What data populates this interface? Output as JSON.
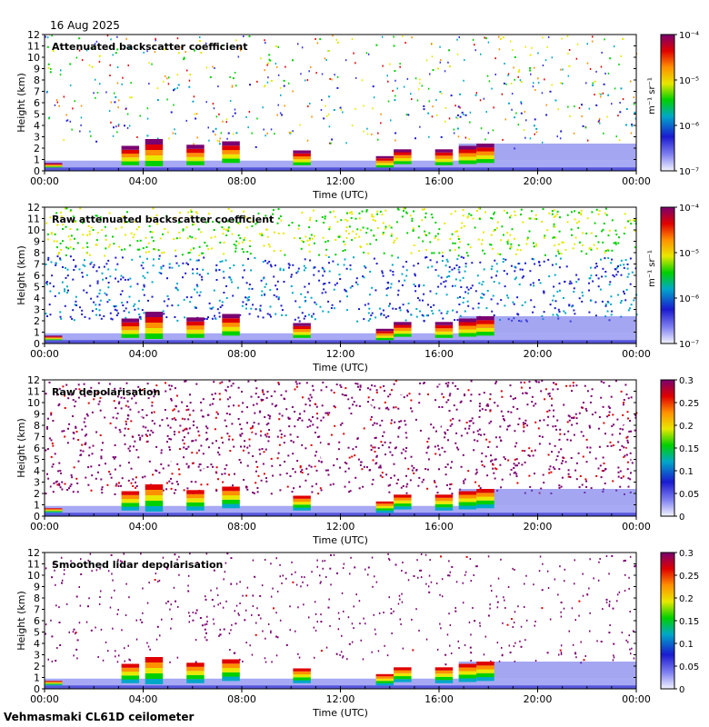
{
  "header": {
    "date": "16 Aug 2025"
  },
  "footer": {
    "site": "Vehmasmaki CL61D ceilometer"
  },
  "chart_data": [
    {
      "type": "heatmap",
      "title": "Attenuated backscatter coefficient",
      "xlabel": "Time (UTC)",
      "ylabel": "Height (km)",
      "x_ticks": [
        "00:00",
        "04:00",
        "08:00",
        "12:00",
        "16:00",
        "20:00",
        "00:00"
      ],
      "y_ticks": [
        "0",
        "1",
        "2",
        "3",
        "4",
        "5",
        "6",
        "7",
        "8",
        "9",
        "10",
        "11",
        "12"
      ],
      "ylim": [
        0,
        12
      ],
      "colorbar": {
        "scale": "log",
        "range": [
          1e-07,
          0.0001
        ],
        "unit": "m⁻¹ sr⁻¹",
        "ticks": [
          "10⁻⁷",
          "10⁻⁶",
          "10⁻⁵",
          "10⁻⁴"
        ]
      },
      "noise": 0.05
    },
    {
      "type": "heatmap",
      "title": "Raw attenuated backscatter coefficient",
      "xlabel": "Time (UTC)",
      "ylabel": "Height (km)",
      "x_ticks": [
        "00:00",
        "04:00",
        "08:00",
        "12:00",
        "16:00",
        "20:00",
        "00:00"
      ],
      "y_ticks": [
        "0",
        "1",
        "2",
        "3",
        "4",
        "5",
        "6",
        "7",
        "8",
        "9",
        "10",
        "11",
        "12"
      ],
      "ylim": [
        0,
        12
      ],
      "colorbar": {
        "scale": "log",
        "range": [
          1e-07,
          0.0001
        ],
        "unit": "m⁻¹ sr⁻¹",
        "ticks": [
          "10⁻⁷",
          "10⁻⁶",
          "10⁻⁵",
          "10⁻⁴"
        ]
      },
      "noise": 0.55
    },
    {
      "type": "heatmap",
      "title": "Raw depolarisation",
      "xlabel": "Time (UTC)",
      "ylabel": "Height (km)",
      "x_ticks": [
        "00:00",
        "04:00",
        "08:00",
        "12:00",
        "16:00",
        "20:00",
        "00:00"
      ],
      "y_ticks": [
        "0",
        "1",
        "2",
        "3",
        "4",
        "5",
        "6",
        "7",
        "8",
        "9",
        "10",
        "11",
        "12"
      ],
      "ylim": [
        0,
        12
      ],
      "colorbar": {
        "scale": "linear",
        "range": [
          0,
          0.3
        ],
        "ticks": [
          "0",
          "0.05",
          "0.1",
          "0.15",
          "0.2",
          "0.25",
          "0.3"
        ]
      },
      "noise": 0.6
    },
    {
      "type": "heatmap",
      "title": "Smoothed lidar depolarisation",
      "xlabel": "Time (UTC)",
      "ylabel": "Height (km)",
      "x_ticks": [
        "00:00",
        "04:00",
        "08:00",
        "12:00",
        "16:00",
        "20:00",
        "00:00"
      ],
      "y_ticks": [
        "0",
        "1",
        "2",
        "3",
        "4",
        "5",
        "6",
        "7",
        "8",
        "9",
        "10",
        "11",
        "12"
      ],
      "ylim": [
        0,
        12
      ],
      "colorbar": {
        "scale": "linear",
        "range": [
          0,
          0.3
        ],
        "ticks": [
          "0",
          "0.05",
          "0.1",
          "0.15",
          "0.2",
          "0.25",
          "0.3"
        ]
      },
      "noise": 0.05
    }
  ]
}
